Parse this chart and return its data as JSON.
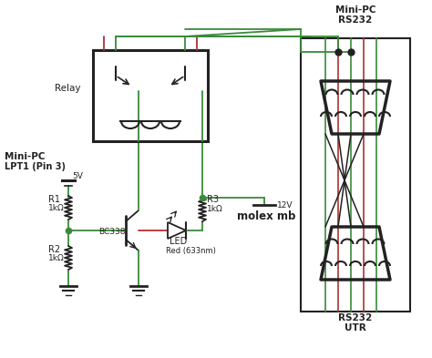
{
  "bg": "#ffffff",
  "green": "#3a8a3a",
  "red": "#aa3333",
  "black": "#222222",
  "figsize": [
    4.74,
    3.93
  ],
  "dpi": 100,
  "labels": {
    "minipc_lpt1": "Mini-PC",
    "minipc_lpt2": "LPT1 (Pin 3)",
    "minipc_rs232_1": "Mini-PC",
    "minipc_rs232_2": "RS232",
    "rs232_utr_1": "RS232",
    "rs232_utr_2": "UTR",
    "relay": "Relay",
    "bc338": "BC338",
    "led": "LED",
    "led_type": "Red (633nm)",
    "r1": "R1",
    "r1v": "1kΩ",
    "r2": "R2",
    "r2v": "1kΩ",
    "r3": "R3",
    "r3v": "1kΩ",
    "v5": "5V",
    "v12": "12V",
    "molex": "molex mb"
  }
}
